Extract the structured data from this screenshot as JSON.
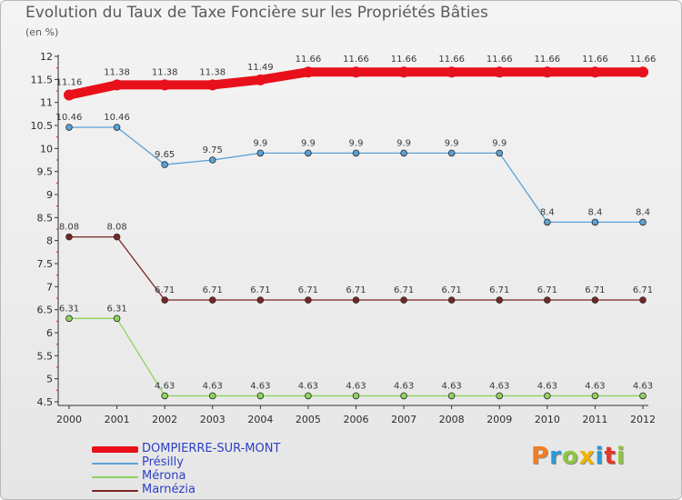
{
  "header": {
    "title": "Evolution du Taux de Taxe Foncière sur les Propriétés Bâties",
    "subtitle": "(en %)"
  },
  "brand": {
    "name": "Proxiti",
    "letter_colors": [
      "#f47d20",
      "#2a9ad6",
      "#8dc63f",
      "#f0b400",
      "#2a9ad6",
      "#e4342b",
      "#8dc63f"
    ]
  },
  "chart_data": {
    "type": "line",
    "title": "Evolution du Taux de Taxe Foncière sur les Propriétés Bâties",
    "ylabel": "(en %)",
    "xlabel": "",
    "ylim": [
      4.5,
      12
    ],
    "yticks": [
      "4.5",
      "5",
      "5.5",
      "6",
      "6.5",
      "7",
      "7.5",
      "8",
      "8.5",
      "9",
      "9.5",
      "10",
      "10.5",
      "11",
      "11.5",
      "12"
    ],
    "grid": false,
    "legend_position": "bottom-left",
    "x": [
      "2000",
      "2001",
      "2002",
      "2003",
      "2004",
      "2005",
      "2006",
      "2007",
      "2008",
      "2009",
      "2010",
      "2011",
      "2012"
    ],
    "series": [
      {
        "name": "DOMPIERRE-SUR-MONT",
        "color": "#e8101a",
        "values": [
          11.16,
          11.38,
          11.38,
          11.38,
          11.49,
          11.66,
          11.66,
          11.66,
          11.66,
          11.66,
          11.66,
          11.66,
          11.66
        ],
        "labels": [
          "11.16",
          "11.38",
          "11.38",
          "11.38",
          "11.49",
          "11.66",
          "11.66",
          "11.66",
          "11.66",
          "11.66",
          "11.66",
          "11.66",
          "11.66"
        ]
      },
      {
        "name": "Présilly",
        "color": "#5aa1d6",
        "values": [
          10.46,
          10.46,
          9.65,
          9.75,
          9.9,
          9.9,
          9.9,
          9.9,
          9.9,
          9.9,
          8.4,
          8.4,
          8.4
        ],
        "labels": [
          "10.46",
          "10.46",
          "9.65",
          "9.75",
          "9.9",
          "9.9",
          "9.9",
          "9.9",
          "9.9",
          "9.9",
          "8.4",
          "8.4",
          "8.4"
        ]
      },
      {
        "name": "Mérona",
        "color": "#8dd35c",
        "values": [
          6.31,
          6.31,
          4.63,
          4.63,
          4.63,
          4.63,
          4.63,
          4.63,
          4.63,
          4.63,
          4.63,
          4.63,
          4.63
        ],
        "labels": [
          "6.31",
          "6.31",
          "4.63",
          "4.63",
          "4.63",
          "4.63",
          "4.63",
          "4.63",
          "4.63",
          "4.63",
          "4.63",
          "4.63",
          "4.63"
        ]
      },
      {
        "name": "Marnézia",
        "color": "#7a2525",
        "values": [
          8.08,
          8.08,
          6.71,
          6.71,
          6.71,
          6.71,
          6.71,
          6.71,
          6.71,
          6.71,
          6.71,
          6.71,
          6.71
        ],
        "labels": [
          "8.08",
          "8.08",
          "6.71",
          "6.71",
          "6.71",
          "6.71",
          "6.71",
          "6.71",
          "6.71",
          "6.71",
          "6.71",
          "6.71",
          "6.71"
        ]
      }
    ]
  }
}
